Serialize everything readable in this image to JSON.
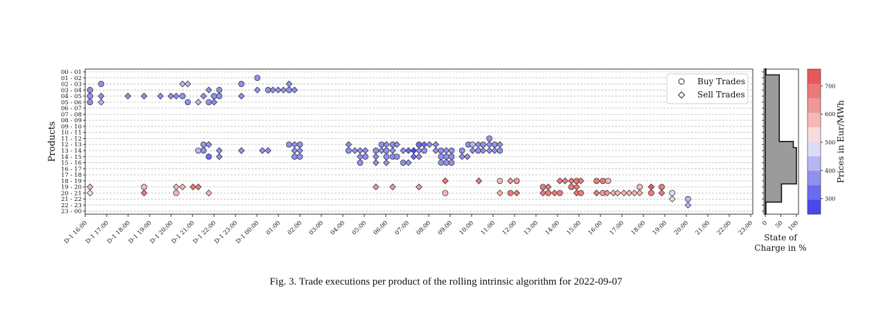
{
  "chart_data": {
    "type": "scatter",
    "ylabel": "Products",
    "x_unit": "hours since D-1 16:00",
    "x_tick_labels": [
      "D-1 16:00",
      "D-1 17:00",
      "D-1 18:00",
      "D-1 19:00",
      "D-1 20:00",
      "D-1 21:00",
      "D-1 22:00",
      "D-1 23:00",
      "D-1 00:00",
      "01:00",
      "02:00",
      "03:00",
      "04:00",
      "05:00",
      "06:00",
      "07:00",
      "08:00",
      "09:00",
      "10:00",
      "11:00",
      "12:00",
      "13:00",
      "14:00",
      "15:00",
      "16:00",
      "17:00",
      "18:00",
      "19:00",
      "20:00",
      "21:00",
      "22:00",
      "23:00"
    ],
    "y_tick_labels": [
      "00 - 01",
      "01 - 02",
      "02 - 03",
      "03 - 04",
      "04 - 05",
      "05 - 06",
      "06 - 07",
      "07 - 08",
      "08 - 09",
      "09 - 10",
      "10 - 11",
      "11 - 12",
      "12 - 13",
      "13 - 14",
      "14 - 15",
      "15 - 16",
      "16 - 17",
      "17 - 18",
      "18 - 19",
      "19 - 20",
      "20 - 21",
      "21 - 22",
      "22 - 23",
      "23 - 00"
    ],
    "grid": "horizontal dashed",
    "legend": {
      "placement": "top-right",
      "entries": [
        {
          "marker": "circle",
          "label": "Buy Trades"
        },
        {
          "marker": "diamond",
          "label": "Sell Trades"
        }
      ]
    },
    "point_fields": [
      "hour",
      "product_index",
      "type(b=buy,s=sell)",
      "price_eur_mwh"
    ],
    "points": [
      [
        0,
        3,
        "b",
        380
      ],
      [
        0,
        4,
        "b",
        380
      ],
      [
        0,
        5,
        "b",
        380
      ],
      [
        0.53,
        2,
        "b",
        380
      ],
      [
        0.53,
        4,
        "s",
        380
      ],
      [
        0.53,
        5,
        "s",
        450
      ],
      [
        1.8,
        4,
        "s",
        380
      ],
      [
        2.57,
        4,
        "s",
        380
      ],
      [
        3.35,
        4,
        "s",
        380
      ],
      [
        3.85,
        4,
        "s",
        380
      ],
      [
        4.1,
        4,
        "s",
        380
      ],
      [
        4.4,
        4,
        "b",
        380
      ],
      [
        4.4,
        2,
        "s",
        450
      ],
      [
        4.65,
        2,
        "s",
        450
      ],
      [
        4.65,
        5,
        "b",
        380
      ],
      [
        5.15,
        5,
        "s",
        450
      ],
      [
        5.4,
        4,
        "s",
        380
      ],
      [
        5.65,
        3,
        "s",
        380
      ],
      [
        5.65,
        5,
        "b",
        380
      ],
      [
        5.9,
        4,
        "b",
        380
      ],
      [
        5.9,
        5,
        "s",
        380
      ],
      [
        6.15,
        3,
        "b",
        380
      ],
      [
        6.15,
        4,
        "b",
        380
      ],
      [
        7.2,
        2,
        "b",
        380
      ],
      [
        7.2,
        4,
        "s",
        380
      ],
      [
        7.96,
        1,
        "b",
        380
      ],
      [
        7.96,
        3,
        "s",
        380
      ],
      [
        8.47,
        3,
        "b",
        380
      ],
      [
        8.7,
        3,
        "s",
        380
      ],
      [
        8.95,
        3,
        "s",
        380
      ],
      [
        9.2,
        3,
        "s",
        380
      ],
      [
        9.47,
        3,
        "b",
        380
      ],
      [
        9.47,
        2,
        "s",
        380
      ],
      [
        9.73,
        3,
        "s",
        380
      ],
      [
        5.4,
        12,
        "b",
        380
      ],
      [
        5.15,
        13,
        "b",
        450
      ],
      [
        5.4,
        13,
        "b",
        380
      ],
      [
        5.65,
        12,
        "s",
        380
      ],
      [
        5.65,
        14,
        "b",
        300
      ],
      [
        6.15,
        13,
        "s",
        380
      ],
      [
        6.15,
        14,
        "s",
        380
      ],
      [
        7.2,
        13,
        "s",
        380
      ],
      [
        8.2,
        13,
        "s",
        380
      ],
      [
        8.47,
        13,
        "s",
        380
      ],
      [
        9.47,
        12,
        "b",
        380
      ],
      [
        9.73,
        12,
        "s",
        380
      ],
      [
        9.98,
        12,
        "b",
        380
      ],
      [
        9.73,
        13,
        "s",
        380
      ],
      [
        9.98,
        13,
        "s",
        380
      ],
      [
        9.73,
        14,
        "b",
        380
      ],
      [
        9.98,
        14,
        "b",
        380
      ],
      [
        12.3,
        12,
        "s",
        380
      ],
      [
        12.3,
        13,
        "b",
        380
      ],
      [
        12.6,
        13,
        "s",
        380
      ],
      [
        12.85,
        13,
        "s",
        380
      ],
      [
        12.85,
        14,
        "s",
        380
      ],
      [
        12.85,
        15,
        "b",
        380
      ],
      [
        13.1,
        13,
        "s",
        380
      ],
      [
        13.1,
        14,
        "b",
        380
      ],
      [
        13.6,
        13,
        "b",
        380
      ],
      [
        13.6,
        14,
        "s",
        380
      ],
      [
        13.6,
        15,
        "s",
        380
      ],
      [
        13.87,
        12,
        "b",
        380
      ],
      [
        13.87,
        13,
        "s",
        380
      ],
      [
        14.1,
        12,
        "s",
        380
      ],
      [
        14.1,
        13,
        "b",
        380
      ],
      [
        14.1,
        14,
        "b",
        380
      ],
      [
        14.1,
        15,
        "s",
        380
      ],
      [
        14.4,
        12,
        "b",
        380
      ],
      [
        14.4,
        13,
        "s",
        380
      ],
      [
        14.4,
        14,
        "b",
        380
      ],
      [
        14.6,
        12,
        "s",
        380
      ],
      [
        14.6,
        14,
        "b",
        380
      ],
      [
        14.9,
        13,
        "s",
        380
      ],
      [
        14.9,
        15,
        "b",
        380
      ],
      [
        15.15,
        13,
        "s",
        330
      ],
      [
        15.15,
        15,
        "s",
        380
      ],
      [
        15.4,
        13,
        "s",
        290
      ],
      [
        15.4,
        14,
        "s",
        330
      ],
      [
        15.65,
        12,
        "b",
        330
      ],
      [
        15.65,
        13,
        "s",
        380
      ],
      [
        15.65,
        14,
        "s",
        380
      ],
      [
        15.9,
        12,
        "s",
        330
      ],
      [
        15.9,
        13,
        "b",
        380
      ],
      [
        16.15,
        12,
        "s",
        380
      ],
      [
        16.45,
        12,
        "s",
        380
      ],
      [
        16.45,
        13,
        "s",
        380
      ],
      [
        16.7,
        13,
        "b",
        380
      ],
      [
        16.7,
        14,
        "b",
        380
      ],
      [
        16.7,
        15,
        "b",
        380
      ],
      [
        16.95,
        13,
        "s",
        380
      ],
      [
        16.95,
        14,
        "b",
        380
      ],
      [
        16.95,
        15,
        "b",
        380
      ],
      [
        17.2,
        13,
        "b",
        380
      ],
      [
        17.2,
        14,
        "b",
        380
      ],
      [
        17.2,
        15,
        "b",
        380
      ],
      [
        17.7,
        13,
        "b",
        380
      ],
      [
        17.7,
        14,
        "s",
        380
      ],
      [
        17.95,
        14,
        "s",
        380
      ],
      [
        18.0,
        12,
        "b",
        380
      ],
      [
        18.2,
        12,
        "b",
        450
      ],
      [
        18.2,
        13,
        "s",
        380
      ],
      [
        18.47,
        12,
        "s",
        380
      ],
      [
        18.47,
        13,
        "b",
        380
      ],
      [
        18.7,
        12,
        "b",
        380
      ],
      [
        18.7,
        13,
        "s",
        380
      ],
      [
        19.0,
        11,
        "b",
        380
      ],
      [
        19.0,
        12,
        "s",
        380
      ],
      [
        19.0,
        13,
        "s",
        380
      ],
      [
        19.25,
        12,
        "b",
        380
      ],
      [
        19.25,
        13,
        "s",
        380
      ],
      [
        19.5,
        12,
        "s",
        380
      ],
      [
        19.5,
        13,
        "b",
        380
      ],
      [
        0,
        19,
        "s",
        590
      ],
      [
        0,
        20,
        "s",
        540
      ],
      [
        2.57,
        19,
        "b",
        580
      ],
      [
        2.57,
        20,
        "s",
        660
      ],
      [
        4.1,
        19,
        "s",
        580
      ],
      [
        4.1,
        20,
        "b",
        580
      ],
      [
        4.4,
        19,
        "s",
        580
      ],
      [
        4.9,
        19,
        "s",
        660
      ],
      [
        5.15,
        19,
        "s",
        660
      ],
      [
        5.65,
        20,
        "s",
        560
      ],
      [
        13.6,
        19,
        "s",
        640
      ],
      [
        14.4,
        19,
        "s",
        640
      ],
      [
        15.65,
        19,
        "s",
        640
      ],
      [
        16.9,
        18,
        "s",
        660
      ],
      [
        16.9,
        20,
        "b",
        580
      ],
      [
        18.5,
        18,
        "s",
        660
      ],
      [
        19.5,
        18,
        "b",
        590
      ],
      [
        19.5,
        20,
        "s",
        600
      ],
      [
        20.0,
        18,
        "s",
        640
      ],
      [
        20.3,
        18,
        "b",
        620
      ],
      [
        20.0,
        20,
        "b",
        660
      ],
      [
        20.3,
        20,
        "s",
        660
      ],
      [
        21.55,
        19,
        "b",
        660
      ],
      [
        21.55,
        20,
        "s",
        660
      ],
      [
        21.8,
        19,
        "s",
        660
      ],
      [
        21.8,
        20,
        "b",
        660
      ],
      [
        22.1,
        20,
        "s",
        660
      ],
      [
        22.35,
        20,
        "b",
        660
      ],
      [
        22.35,
        18,
        "s",
        660
      ],
      [
        22.6,
        18,
        "s",
        660
      ],
      [
        22.9,
        18,
        "s",
        660
      ],
      [
        23.15,
        18,
        "b",
        660
      ],
      [
        23.35,
        18,
        "s",
        660
      ],
      [
        22.9,
        19,
        "b",
        660
      ],
      [
        23.15,
        19,
        "s",
        660
      ],
      [
        23.15,
        20,
        "s",
        660
      ],
      [
        23.35,
        20,
        "b",
        660
      ],
      [
        24.1,
        18,
        "b",
        660
      ],
      [
        24.4,
        18,
        "b",
        660
      ],
      [
        24.65,
        18,
        "b",
        600
      ],
      [
        24.1,
        20,
        "s",
        660
      ],
      [
        24.4,
        20,
        "b",
        620
      ],
      [
        24.6,
        20,
        "s",
        620
      ],
      [
        24.9,
        20,
        "s",
        600
      ],
      [
        25.1,
        20,
        "s",
        600
      ],
      [
        25.4,
        20,
        "s",
        600
      ],
      [
        25.65,
        20,
        "s",
        600
      ],
      [
        25.9,
        20,
        "s",
        600
      ],
      [
        26.15,
        20,
        "s",
        600
      ],
      [
        26.15,
        19,
        "b",
        590
      ],
      [
        26.7,
        19,
        "s",
        720
      ],
      [
        26.7,
        20,
        "b",
        700
      ],
      [
        27.2,
        19,
        "b",
        660
      ],
      [
        27.2,
        20,
        "s",
        660
      ],
      [
        27.7,
        20,
        "b",
        470
      ],
      [
        27.7,
        21,
        "s",
        530
      ],
      [
        28.45,
        21,
        "b",
        420
      ],
      [
        28.45,
        22,
        "s",
        420
      ]
    ],
    "soc_panel": {
      "xlabel": "State of\nCharge in %",
      "xlabel_lines": [
        "State of",
        "Charge in %"
      ],
      "x_tick_labels": [
        "0",
        "50",
        "100"
      ],
      "xlim": [
        0,
        100
      ],
      "values": [
        2,
        45,
        45,
        45,
        45,
        45,
        45,
        45,
        45,
        45,
        45,
        45,
        90,
        100,
        100,
        100,
        100,
        100,
        100,
        52,
        52,
        52,
        2,
        2
      ]
    },
    "colorbar": {
      "label": "Prices in Eur/MWh",
      "tick_labels": [
        "300",
        "400",
        "500",
        "600",
        "700"
      ],
      "range": [
        245,
        760
      ],
      "colors": [
        "#4848ee",
        "#6b6bf0",
        "#9090ef",
        "#b6b6f2",
        "#dcdcf6",
        "#f8dcdc",
        "#f4b8b8",
        "#f09898",
        "#ec7a7a",
        "#e85858"
      ]
    }
  },
  "caption": "Fig. 3.  Trade executions per product of the rolling intrinsic algorithm for 2022-09-07"
}
